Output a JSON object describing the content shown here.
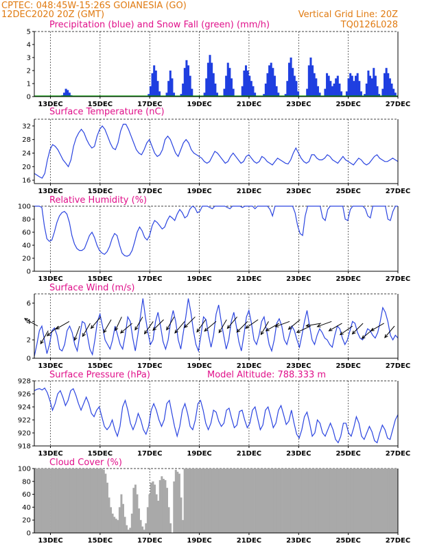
{
  "header": {
    "line1": "CPTEC:   048:45W-15:26S   GOIANESIA (GO)",
    "line2": "12DEC2020 20Z (GMT)",
    "grid_note": "Vertical Grid Line: 20Z",
    "run_code": "TQ0126L028"
  },
  "colors": {
    "header": "#e07a10",
    "title": "#e0108a",
    "precip": "#1f3fe0",
    "snow": "#00a000",
    "line": "#2a44e0",
    "cloud": "#a9a9a9",
    "arrow": "#000000"
  },
  "x_axis": {
    "ticks": [
      "13DEC",
      "15DEC",
      "17DEC",
      "19DEC",
      "21DEC",
      "23DEC",
      "25DEC",
      "27DEC"
    ],
    "tick_days": [
      13,
      15,
      17,
      19,
      21,
      23,
      25,
      27
    ],
    "range_days": [
      12.35,
      27.0
    ]
  },
  "chart_data": [
    {
      "type": "bar",
      "title": "Precipitation (blue) and Snow Fall (green) (mm/h)",
      "ylim": [
        0,
        5
      ],
      "yticks": [
        "0",
        "1",
        "2",
        "3",
        "4",
        "5"
      ],
      "series_name": "Precipitation",
      "values_mm_h": [
        0,
        0,
        0,
        0,
        0,
        0,
        0,
        0,
        0,
        0,
        0,
        0,
        0,
        0,
        0,
        0.1,
        0.3,
        0.6,
        0.5,
        0.3,
        0.1,
        0,
        0,
        0,
        0,
        0,
        0,
        0,
        0,
        0,
        0,
        0,
        0,
        0,
        0,
        0,
        0,
        0,
        0,
        0,
        0,
        0,
        0,
        0,
        0,
        0,
        0,
        0,
        0,
        0,
        0,
        0,
        0,
        0,
        0,
        0,
        0,
        0,
        0,
        0,
        0,
        0,
        0,
        0.2,
        0.8,
        1.8,
        2.4,
        2.0,
        1.2,
        0.4,
        0,
        0,
        0,
        0.3,
        1.2,
        2.0,
        1.4,
        0.3,
        0,
        0,
        0,
        0.2,
        1.0,
        2.2,
        2.8,
        2.4,
        1.6,
        0.6,
        0,
        0,
        0,
        0,
        0,
        0,
        0.3,
        1.4,
        2.6,
        3.2,
        2.6,
        1.8,
        1.0,
        0.3,
        0,
        0,
        0,
        0.6,
        1.6,
        2.6,
        2.2,
        1.4,
        0.6,
        0,
        0,
        0,
        0,
        0.8,
        2.0,
        2.4,
        2.0,
        1.6,
        1.2,
        0.8,
        0.3,
        0,
        0,
        0,
        0,
        0.2,
        1.0,
        1.8,
        2.4,
        2.6,
        2.2,
        1.6,
        0.8,
        0.3,
        0,
        0,
        0,
        0.2,
        1.2,
        2.6,
        3.0,
        2.2,
        1.6,
        1.2,
        0.4,
        0,
        0,
        0,
        0,
        0.6,
        2.4,
        3.0,
        2.4,
        1.8,
        1.4,
        0.8,
        0.3,
        0,
        0,
        0.6,
        1.8,
        1.6,
        1.2,
        0.8,
        1.0,
        1.4,
        1.6,
        1.0,
        0.4,
        0,
        0,
        0.4,
        1.4,
        1.8,
        1.6,
        1.2,
        1.6,
        1.8,
        1.2,
        0.4,
        0,
        0.2,
        1.0,
        2.0,
        1.6,
        1.4,
        2.2,
        1.6,
        0.8,
        0.2,
        0,
        0.6,
        1.8,
        2.2,
        1.8,
        1.4,
        1.0,
        0.6,
        0.3,
        0
      ],
      "snow_mm_h": 0
    },
    {
      "type": "line",
      "title": "Surface Temperature (nC)",
      "ylim": [
        15,
        34
      ],
      "yticks": [
        "16",
        "20",
        "24",
        "28",
        "32"
      ],
      "ytick_values": [
        16,
        20,
        24,
        28,
        32
      ],
      "values": [
        18,
        17.5,
        17,
        16.6,
        18,
        22,
        25,
        26.5,
        26,
        25,
        23.5,
        22,
        21,
        20,
        22,
        26,
        28.5,
        30,
        31,
        30,
        28,
        26.5,
        25.5,
        26,
        29,
        31,
        32,
        31,
        29,
        27,
        25.5,
        25,
        27,
        30.5,
        32.5,
        32.5,
        31,
        29,
        27,
        25,
        24,
        23.5,
        25,
        27,
        28,
        26,
        24,
        23,
        23.5,
        25,
        28,
        29,
        28,
        26,
        24,
        23,
        25,
        27,
        28,
        27,
        25,
        24,
        23.5,
        23,
        22.5,
        21.5,
        21,
        21.5,
        23,
        24.5,
        24,
        23,
        22,
        21,
        21.5,
        23,
        24,
        23,
        22,
        21,
        21.5,
        23,
        23.5,
        22.5,
        21.5,
        21,
        21.5,
        23,
        22.5,
        21.5,
        21,
        20.5,
        21.5,
        22.5,
        22,
        21.5,
        21,
        20.8,
        22,
        24,
        25.5,
        24,
        22.5,
        21.5,
        21,
        21.5,
        23.5,
        23.5,
        22.5,
        22,
        22,
        22.5,
        23.5,
        23,
        22,
        21.5,
        21,
        22,
        23,
        22,
        21.5,
        21,
        20.5,
        21.5,
        22.5,
        22,
        21,
        20.5,
        21,
        22,
        23,
        23.5,
        22.5,
        22,
        21.5,
        21.5,
        22,
        22.5,
        22,
        21.5
      ]
    },
    {
      "type": "line",
      "title": "Relative Humidity (%)",
      "ylim": [
        0,
        100
      ],
      "yticks": [
        "0",
        "20",
        "40",
        "60",
        "80",
        "100"
      ],
      "ytick_values": [
        0,
        20,
        40,
        60,
        80,
        100
      ],
      "values": [
        100,
        100,
        100,
        98,
        70,
        50,
        46,
        48,
        60,
        75,
        85,
        90,
        92,
        88,
        75,
        55,
        42,
        35,
        32,
        32,
        35,
        45,
        55,
        60,
        52,
        40,
        32,
        28,
        26,
        30,
        38,
        50,
        58,
        55,
        40,
        28,
        24,
        23,
        25,
        32,
        45,
        60,
        68,
        62,
        52,
        48,
        55,
        70,
        78,
        75,
        70,
        65,
        68,
        78,
        85,
        82,
        78,
        88,
        95,
        90,
        82,
        85,
        95,
        100,
        98,
        90,
        92,
        100,
        100,
        100,
        98,
        96,
        100,
        100,
        100,
        100,
        100,
        98,
        96,
        100,
        100,
        100,
        100,
        98,
        100,
        100,
        100,
        100,
        96,
        100,
        100,
        100,
        100,
        100,
        95,
        85,
        100,
        100,
        100,
        100,
        100,
        100,
        100,
        100,
        90,
        70,
        58,
        55,
        85,
        100,
        100,
        100,
        100,
        100,
        100,
        82,
        78,
        95,
        100,
        100,
        100,
        100,
        100,
        100,
        80,
        78,
        95,
        100,
        100,
        100,
        100,
        100,
        96,
        85,
        82,
        100,
        100,
        100,
        100,
        100,
        100,
        80,
        78,
        92,
        100,
        100
      ]
    },
    {
      "type": "line",
      "title": "Surface Wind (m/s)",
      "ylim": [
        0,
        7
      ],
      "yticks": [
        "0",
        "2",
        "4",
        "6"
      ],
      "ytick_values": [
        0,
        2,
        4,
        6
      ],
      "values": [
        0.2,
        1.5,
        3.0,
        3.5,
        2.0,
        0.5,
        1.5,
        3.0,
        3.3,
        2.5,
        1.0,
        0.8,
        1.5,
        3.0,
        3.5,
        2.8,
        1.5,
        0.8,
        2.5,
        4.0,
        3.8,
        2.5,
        1.0,
        0.4,
        2.0,
        4.0,
        4.8,
        3.5,
        2.0,
        1.5,
        1.0,
        2.0,
        3.5,
        2.5,
        1.5,
        1.0,
        2.5,
        4.5,
        4.0,
        2.2,
        0.8,
        2.5,
        4.5,
        6.5,
        4.5,
        2.8,
        1.5,
        2.0,
        4.0,
        5.0,
        3.5,
        1.8,
        1.0,
        2.0,
        4.0,
        5.2,
        4.0,
        2.0,
        1.0,
        2.8,
        4.5,
        6.5,
        5.0,
        3.0,
        1.5,
        0.8,
        2.5,
        4.5,
        4.2,
        2.5,
        1.2,
        2.5,
        4.8,
        5.8,
        4.0,
        2.5,
        1.0,
        2.0,
        4.0,
        5.0,
        3.5,
        1.8,
        0.8,
        2.5,
        4.5,
        5.2,
        3.8,
        2.0,
        1.5,
        2.5,
        4.0,
        4.5,
        3.0,
        1.5,
        0.8,
        2.0,
        3.8,
        4.3,
        3.5,
        2.0,
        1.5,
        2.5,
        3.5,
        3.0,
        2.0,
        1.2,
        2.5,
        4.0,
        5.2,
        3.5,
        2.0,
        1.5,
        2.5,
        3.2,
        2.8,
        2.2,
        2.0,
        1.5,
        1.2,
        2.5,
        3.5,
        3.2,
        2.2,
        1.5,
        2.0,
        3.0,
        4.0,
        3.8,
        2.8,
        2.2,
        2.0,
        2.5,
        3.2,
        3.0,
        2.5,
        2.2,
        2.8,
        4.0,
        5.5,
        5.0,
        4.0,
        2.5,
        2.0,
        2.5,
        2.2
      ]
    },
    {
      "type": "line",
      "title": "Surface Pressure (hPa)",
      "annotation": "Model Altitude: 788.333 m",
      "ylim": [
        918,
        928
      ],
      "yticks": [
        "918",
        "920",
        "922",
        "924",
        "926",
        "928"
      ],
      "ytick_values": [
        918,
        920,
        922,
        924,
        926,
        928
      ],
      "values": [
        926.5,
        926.7,
        926.8,
        926.6,
        926.9,
        926.2,
        925,
        923.5,
        924.5,
        926,
        926.5,
        925.5,
        924.2,
        925,
        926.5,
        926.8,
        925.8,
        924.5,
        923.5,
        924.5,
        925.5,
        924.5,
        923,
        922.5,
        923.5,
        924,
        922.5,
        921,
        920.5,
        921,
        922,
        920.5,
        919.5,
        921,
        924,
        925,
        923.5,
        921.5,
        920.5,
        921.5,
        923,
        922,
        920.5,
        919.8,
        921,
        923.5,
        924.5,
        923.5,
        922,
        921,
        922,
        924.5,
        925,
        923,
        921,
        919.5,
        921,
        923.5,
        924.5,
        923,
        921,
        920.5,
        922,
        924.5,
        925,
        923.5,
        921.5,
        920.5,
        921.5,
        923.5,
        923.2,
        921.8,
        921,
        921.5,
        923.5,
        923.8,
        922.2,
        920.8,
        921.2,
        923.3,
        923.5,
        922,
        920.8,
        921.5,
        923.5,
        924,
        922.2,
        920.5,
        921.2,
        923.5,
        924,
        922.5,
        920.8,
        921.5,
        923.5,
        924.2,
        922.8,
        921.3,
        921.8,
        923.5,
        921.5,
        919.8,
        919.2,
        920.5,
        922.5,
        923.2,
        921.5,
        919.5,
        920,
        922,
        921.5,
        920,
        919.5,
        920.5,
        921.5,
        920.5,
        919,
        918.5,
        919.5,
        921.5,
        921.5,
        920,
        919.5,
        920.8,
        922.5,
        921.5,
        919.5,
        919,
        920,
        921,
        920.2,
        918.8,
        918.5,
        920,
        921.2,
        920.5,
        919.2,
        919,
        920.5,
        922,
        922.8
      ]
    },
    {
      "type": "bar",
      "title": "Cloud Cover (%)",
      "ylim": [
        0,
        100
      ],
      "yticks": [
        "0",
        "20",
        "40",
        "60",
        "80",
        "100"
      ],
      "ytick_values": [
        0,
        20,
        40,
        60,
        80,
        100
      ],
      "values": [
        100,
        100,
        100,
        100,
        100,
        100,
        100,
        100,
        100,
        100,
        100,
        100,
        100,
        100,
        100,
        100,
        100,
        100,
        100,
        100,
        100,
        100,
        100,
        100,
        100,
        100,
        100,
        100,
        100,
        100,
        100,
        100,
        100,
        100,
        100,
        100,
        100,
        100,
        100,
        98,
        92,
        78,
        55,
        40,
        30,
        25,
        22,
        20,
        40,
        60,
        45,
        25,
        12,
        5,
        8,
        30,
        70,
        75,
        60,
        38,
        20,
        10,
        5,
        15,
        40,
        60,
        78,
        80,
        75,
        60,
        50,
        82,
        88,
        84,
        82,
        70,
        40,
        15,
        0,
        80,
        98,
        95,
        92,
        55,
        20,
        100,
        100,
        100,
        100,
        100,
        100,
        100,
        100,
        100,
        100,
        100,
        100,
        100,
        100,
        100,
        100,
        100,
        100,
        100,
        100,
        100,
        100,
        100,
        100,
        100,
        100,
        100,
        100,
        100,
        100,
        100,
        100,
        100,
        100,
        100,
        100,
        100,
        100,
        100,
        100,
        100,
        100,
        100,
        100,
        100,
        100,
        100,
        100,
        100,
        100,
        100,
        100,
        100,
        100,
        100,
        100,
        100,
        100,
        100,
        100,
        100,
        100,
        100,
        100,
        100,
        100,
        100,
        100,
        100,
        100,
        100,
        100,
        100,
        100,
        100,
        100,
        100,
        100,
        100,
        100,
        100,
        100,
        100,
        100,
        100,
        100,
        100,
        100,
        100,
        100,
        100,
        100,
        100,
        100,
        100,
        100,
        100,
        100,
        100,
        100,
        100,
        100,
        100,
        100,
        100,
        100,
        100,
        100,
        100,
        100,
        100,
        100,
        100,
        100,
        100,
        100,
        100,
        100,
        100,
        100,
        100,
        100
      ]
    }
  ],
  "wind_vectors": {
    "unit": "m/s",
    "speeds": [
      3.5,
      3.0,
      3.5,
      4.0,
      3.5,
      3.8,
      4.5,
      4.2,
      4.5,
      3.8,
      4.5,
      4.0,
      4.2,
      4.5,
      4.0,
      4.5,
      4.2,
      4.0,
      4.2,
      4.5,
      4.0,
      4.2,
      4.0,
      3.8,
      4.0,
      4.2,
      3.5,
      3.8,
      4.0,
      3.8,
      3.5,
      3.8,
      3.2,
      3.8,
      3.5
    ],
    "directions_deg_to": [
      300,
      210,
      230,
      240,
      200,
      210,
      220,
      210,
      205,
      230,
      210,
      215,
      225,
      210,
      220,
      225,
      215,
      230,
      210,
      220,
      225,
      235,
      210,
      240,
      250,
      230,
      245,
      260,
      250,
      240,
      235,
      225,
      230,
      240,
      220
    ]
  }
}
